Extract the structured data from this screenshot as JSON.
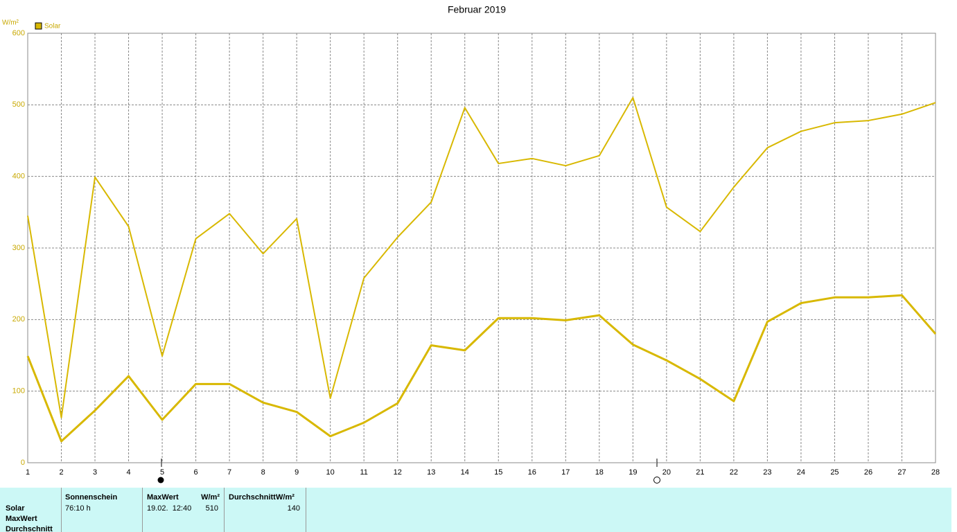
{
  "chart_data": {
    "type": "line",
    "title": "Februar 2019",
    "y_label": "W/m²",
    "x": [
      1,
      2,
      3,
      4,
      5,
      6,
      7,
      8,
      9,
      10,
      11,
      12,
      13,
      14,
      15,
      16,
      17,
      18,
      19,
      20,
      21,
      22,
      23,
      24,
      25,
      26,
      27,
      28
    ],
    "series": [
      {
        "name": "Solar",
        "color": "#d8b800",
        "values": [
          345,
          63,
          399,
          330,
          149,
          313,
          348,
          292,
          341,
          90,
          258,
          315,
          364,
          496,
          418,
          425,
          415,
          429,
          510,
          357,
          323,
          385,
          440,
          463,
          475,
          478,
          487,
          503
        ]
      },
      {
        "color": "#d8b800",
        "values": [
          149,
          30,
          73,
          121,
          60,
          110,
          110,
          84,
          71,
          37,
          56,
          83,
          164,
          157,
          202,
          202,
          199,
          206,
          165,
          143,
          117,
          86,
          197,
          223,
          231,
          231,
          234,
          180
        ]
      }
    ],
    "xlim": [
      1,
      28
    ],
    "xticks": [
      1,
      2,
      3,
      4,
      5,
      6,
      7,
      8,
      9,
      10,
      11,
      12,
      13,
      14,
      15,
      16,
      17,
      18,
      19,
      20,
      21,
      22,
      23,
      24,
      25,
      26,
      27,
      28
    ],
    "ylim": [
      0,
      600
    ],
    "yticks": [
      0,
      100,
      200,
      300,
      400,
      500,
      600
    ],
    "grid": true,
    "legend": "top-left"
  },
  "table": {
    "row_labels": [
      "Solar",
      "MaxWert",
      "Durchschnitt"
    ],
    "sunshine": {
      "header": "Sonnenschein",
      "value": "76:10 h"
    },
    "max": {
      "header": "MaxWert",
      "unit": "W/m²",
      "date": "19.02.  12:40",
      "value": 510
    },
    "average": {
      "header": "Durchschnitt",
      "unit": "W/m²",
      "value": 140
    }
  }
}
